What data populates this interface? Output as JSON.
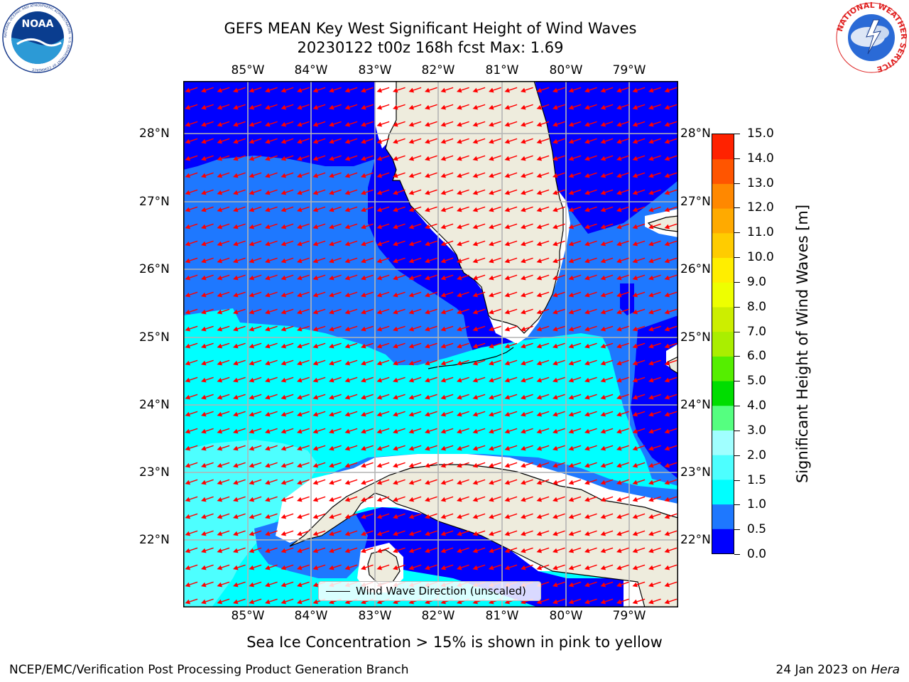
{
  "header": {
    "title_line1": "GEFS MEAN Key West Significant Height of Wind Waves",
    "title_line2": "20230122 t00z 168h fcst   Max: 1.69"
  },
  "logos": {
    "noaa_text": "NOAA",
    "noaa_ring": "NATIONAL OCEANIC AND ATMOSPHERIC ADMINISTRATION · U.S. DEPARTMENT OF COMMERCE",
    "nws_ring": "NATIONAL WEATHER SERVICE"
  },
  "map": {
    "longitude_labels": [
      "85°W",
      "84°W",
      "83°W",
      "82°W",
      "81°W",
      "80°W",
      "79°W"
    ],
    "latitude_labels": [
      "28°N",
      "27°N",
      "26°N",
      "25°N",
      "24°N",
      "23°N",
      "22°N"
    ],
    "lon_range": [
      -86.0,
      -78.25
    ],
    "lat_range": [
      21.05,
      28.78
    ],
    "land_color": "#eeecdd",
    "ocean_colors": {
      "0.0-0.5": "#0000ff",
      "0.5-1.0": "#1e78ff",
      "1.0-1.5": "#00ffff",
      "1.5-2.0": "#4dffff"
    },
    "arrow_color": "#ff0000",
    "arrow_direction": "from east-northeast toward west-southwest",
    "legend_label": "Wind Wave Direction (unscaled)"
  },
  "colorbar": {
    "label": "Significant Height of Wind Waves [m]",
    "ticks": [
      "0.0",
      "0.5",
      "1.0",
      "1.5",
      "2.0",
      "3.0",
      "4.0",
      "5.0",
      "6.0",
      "7.0",
      "8.0",
      "9.0",
      "10.0",
      "11.0",
      "12.0",
      "13.0",
      "14.0",
      "15.0"
    ],
    "colors": [
      "#0000ff",
      "#1e78ff",
      "#00ffff",
      "#4dffff",
      "#a0ffff",
      "#55ff80",
      "#00dd00",
      "#55ee00",
      "#aaee00",
      "#ccee00",
      "#eeff00",
      "#ffee00",
      "#ffcc00",
      "#ffaa00",
      "#ff8800",
      "#ff5500",
      "#ff2200"
    ]
  },
  "footer": {
    "sea_ice_note": "Sea Ice Concentration > 15% is shown in pink to yellow",
    "branch": "NCEP/EMC/Verification Post Processing Product Generation Branch",
    "date": "24 Jan 2023 on",
    "host": "Hera"
  }
}
